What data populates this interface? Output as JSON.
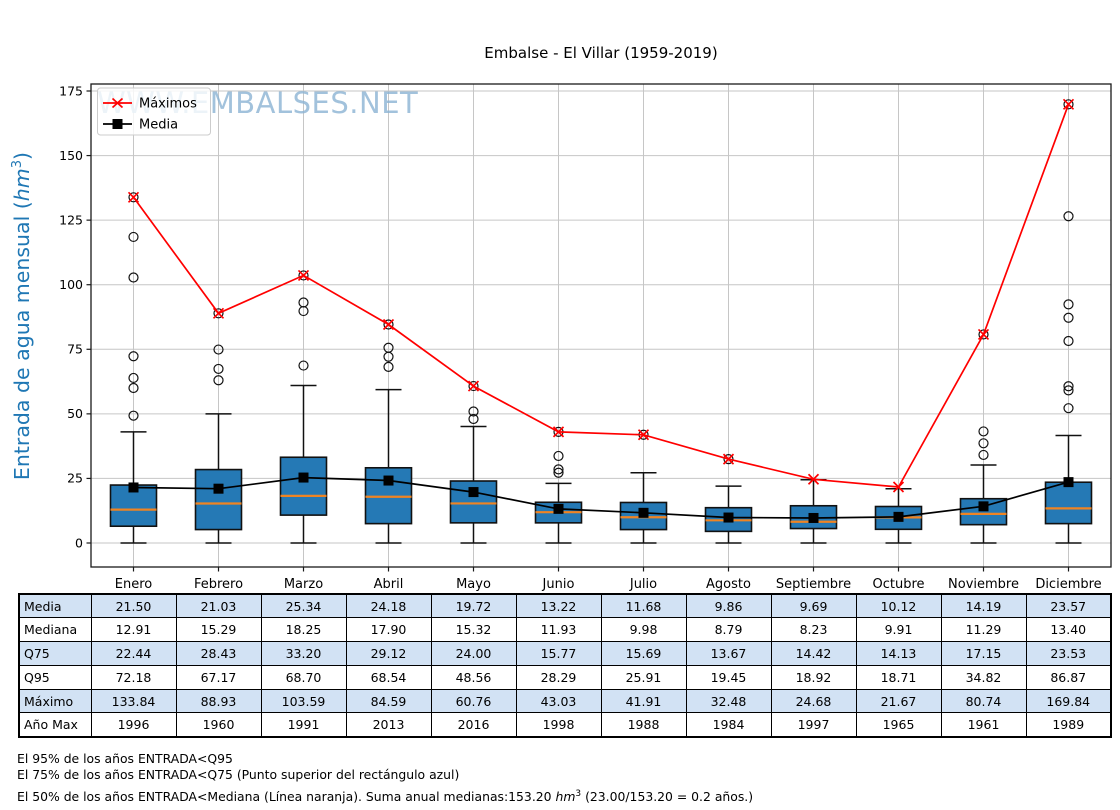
{
  "title": "Embalse - El Villar (1959-2019)",
  "watermark": "WWW.EMBALSES.NET",
  "y_axis": {
    "label_prefix": "Entrada de agua mensual (",
    "label_unit": "hm",
    "label_exponent": "3",
    "label_suffix": ")",
    "ticks": [
      0,
      25,
      50,
      75,
      100,
      125,
      150,
      175
    ]
  },
  "legend": {
    "items": [
      {
        "label": "Máximos",
        "marker": "x",
        "color": "#ff0000"
      },
      {
        "label": "Media",
        "marker": "square",
        "color": "#000000"
      }
    ]
  },
  "colors": {
    "box_fill": "#2579b5",
    "box_edge": "#111111",
    "median": "#ef8423",
    "maximos": "#ff0000",
    "media": "#000000",
    "grid": "#c6c6c6",
    "watermark": "#8cb4d4",
    "ylabel": "#1f77b4",
    "table_row_alt": "#d2e2f4"
  },
  "chart_data": {
    "type": "boxplot",
    "categories": [
      "Enero",
      "Febrero",
      "Marzo",
      "Abril",
      "Mayo",
      "Junio",
      "Julio",
      "Agosto",
      "Septiembre",
      "Octubre",
      "Noviembre",
      "Diciembre"
    ],
    "yticks": [
      0,
      25,
      50,
      75,
      100,
      125,
      150,
      175
    ],
    "ylim": [
      -9,
      178
    ],
    "grid": true,
    "legend_position": "upper left",
    "series": [
      {
        "name": "Máximos",
        "marker": "x",
        "color": "#ff0000",
        "values": [
          133.84,
          88.93,
          103.59,
          84.59,
          60.76,
          43.03,
          41.91,
          32.48,
          24.68,
          21.67,
          80.74,
          169.84
        ]
      },
      {
        "name": "Media",
        "marker": "square",
        "color": "#000000",
        "values": [
          21.5,
          21.03,
          25.34,
          24.18,
          19.72,
          13.22,
          11.68,
          9.86,
          9.69,
          10.12,
          14.19,
          23.57
        ]
      }
    ],
    "boxes": {
      "median": [
        12.91,
        15.29,
        18.25,
        17.9,
        15.32,
        11.93,
        9.98,
        8.79,
        8.23,
        9.91,
        11.29,
        13.4
      ],
      "q75": [
        22.44,
        28.43,
        33.2,
        29.12,
        24.0,
        15.77,
        15.69,
        13.67,
        14.42,
        14.13,
        17.15,
        23.53
      ],
      "q25": [
        6.5,
        5.2,
        10.8,
        7.5,
        7.8,
        7.8,
        5.2,
        4.5,
        5.6,
        5.3,
        7.1,
        7.5
      ],
      "whisker_high": [
        43.0,
        50.0,
        61.0,
        59.4,
        45.1,
        23.1,
        27.2,
        22.0,
        24.5,
        21.0,
        30.2,
        41.6
      ],
      "whisker_low": [
        0,
        0,
        0,
        0,
        0,
        0,
        0,
        0,
        0,
        0,
        0,
        0
      ],
      "outliers": [
        [
          133.84,
          118.5,
          102.8,
          72.3,
          63.9,
          60.0,
          49.3
        ],
        [
          88.93,
          74.9,
          67.4,
          63.0
        ],
        [
          103.59,
          93.1,
          89.8,
          68.7
        ],
        [
          84.59,
          75.6,
          72.1,
          68.2
        ],
        [
          60.76,
          50.9,
          48.0
        ],
        [
          43.03,
          33.7,
          28.5,
          27.2
        ],
        [
          41.91
        ],
        [
          32.48
        ],
        [],
        [],
        [
          80.74,
          43.2,
          38.6,
          34.1
        ],
        [
          169.84,
          126.5,
          92.4,
          87.2,
          78.2,
          60.7,
          59.1,
          52.2
        ]
      ]
    },
    "q95": [
      72.18,
      67.17,
      68.7,
      68.54,
      48.56,
      28.29,
      25.91,
      19.45,
      18.92,
      18.71,
      34.82,
      86.87
    ],
    "max_year": [
      1996,
      1960,
      1991,
      2013,
      2016,
      1998,
      1988,
      1984,
      1997,
      1965,
      1961,
      1989
    ]
  },
  "table": {
    "columns": [
      "Enero",
      "Febrero",
      "Marzo",
      "Abril",
      "Mayo",
      "Junio",
      "Julio",
      "Agosto",
      "Septiembre",
      "Octubre",
      "Noviembre",
      "Diciembre"
    ],
    "rows": [
      {
        "label": "Media",
        "values": [
          "21.50",
          "21.03",
          "25.34",
          "24.18",
          "19.72",
          "13.22",
          "11.68",
          "9.86",
          "9.69",
          "10.12",
          "14.19",
          "23.57"
        ]
      },
      {
        "label": "Mediana",
        "values": [
          "12.91",
          "15.29",
          "18.25",
          "17.90",
          "15.32",
          "11.93",
          "9.98",
          "8.79",
          "8.23",
          "9.91",
          "11.29",
          "13.40"
        ]
      },
      {
        "label": "Q75",
        "values": [
          "22.44",
          "28.43",
          "33.20",
          "29.12",
          "24.00",
          "15.77",
          "15.69",
          "13.67",
          "14.42",
          "14.13",
          "17.15",
          "23.53"
        ]
      },
      {
        "label": "Q95",
        "values": [
          "72.18",
          "67.17",
          "68.70",
          "68.54",
          "48.56",
          "28.29",
          "25.91",
          "19.45",
          "18.92",
          "18.71",
          "34.82",
          "86.87"
        ]
      },
      {
        "label": "Máximo",
        "values": [
          "133.84",
          "88.93",
          "103.59",
          "84.59",
          "60.76",
          "43.03",
          "41.91",
          "32.48",
          "24.68",
          "21.67",
          "80.74",
          "169.84"
        ]
      },
      {
        "label": "Año Max",
        "values": [
          "1996",
          "1960",
          "1991",
          "2013",
          "2016",
          "1998",
          "1988",
          "1984",
          "1997",
          "1965",
          "1961",
          "1989"
        ]
      }
    ]
  },
  "footnotes": {
    "line1": "El 95% de los años ENTRADA<Q95",
    "line2": "El 75% de los años ENTRADA<Q75 (Punto superior del rectángulo azul)",
    "line3_prefix": "El 50% de los años ENTRADA<Mediana (Línea naranja). Suma anual medianas:153.20 ",
    "line3_unit": "hm",
    "line3_exponent": "3",
    "line3_suffix": " (23.00/153.20 = 0.2 años.)"
  }
}
